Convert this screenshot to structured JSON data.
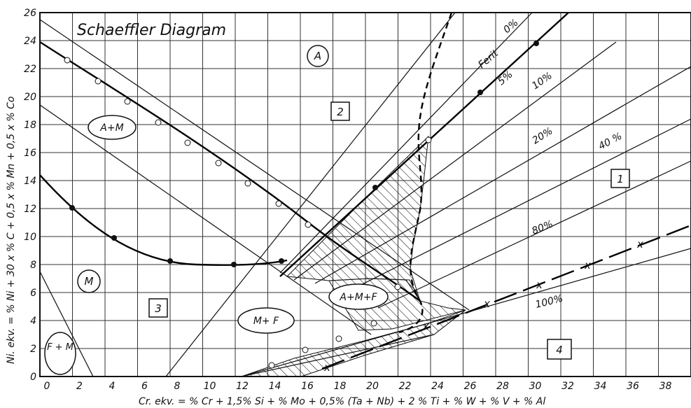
{
  "title": "Schaeffler Diagram",
  "x_axis": {
    "label": "Cr. ekv. = % Cr + 1,5% Si + % Mo + 0,5% (Ta + Nb) + 2 % Ti + % W + % V + % Al",
    "ticks": [
      "0",
      "2",
      "4",
      "6",
      "8",
      "10",
      "12",
      "14",
      "16",
      "18",
      "20",
      "22",
      "24",
      "26",
      "28",
      "30",
      "32",
      "34",
      "36",
      "38"
    ],
    "range": [
      0,
      40
    ]
  },
  "y_axis": {
    "label": "Ni. ekv. = % Ni + 30 x % C + 0,5 x % Mn + 0,5 x % Co",
    "ticks": [
      "0",
      "2",
      "4",
      "6",
      "8",
      "10",
      "12",
      "14",
      "16",
      "18",
      "20",
      "22",
      "24",
      "26"
    ],
    "range": [
      0,
      26
    ]
  },
  "regions": {
    "A": "A",
    "AM": "A+M",
    "M": "M",
    "FM": "F + M",
    "MF": "M+ F",
    "AMF": "A+M+F"
  },
  "zones": {
    "z1": "1",
    "z2": "2",
    "z3": "3",
    "z4": "4"
  },
  "ferrite_lines": {
    "ferit": "Ferit",
    "f0": "0%",
    "f5": "5%",
    "f10": "10%",
    "f20": "20%",
    "f40": "40 %",
    "f80": "80%",
    "f100": "100%"
  },
  "colors": {
    "ink": "#111111",
    "paper": "#ffffff"
  }
}
